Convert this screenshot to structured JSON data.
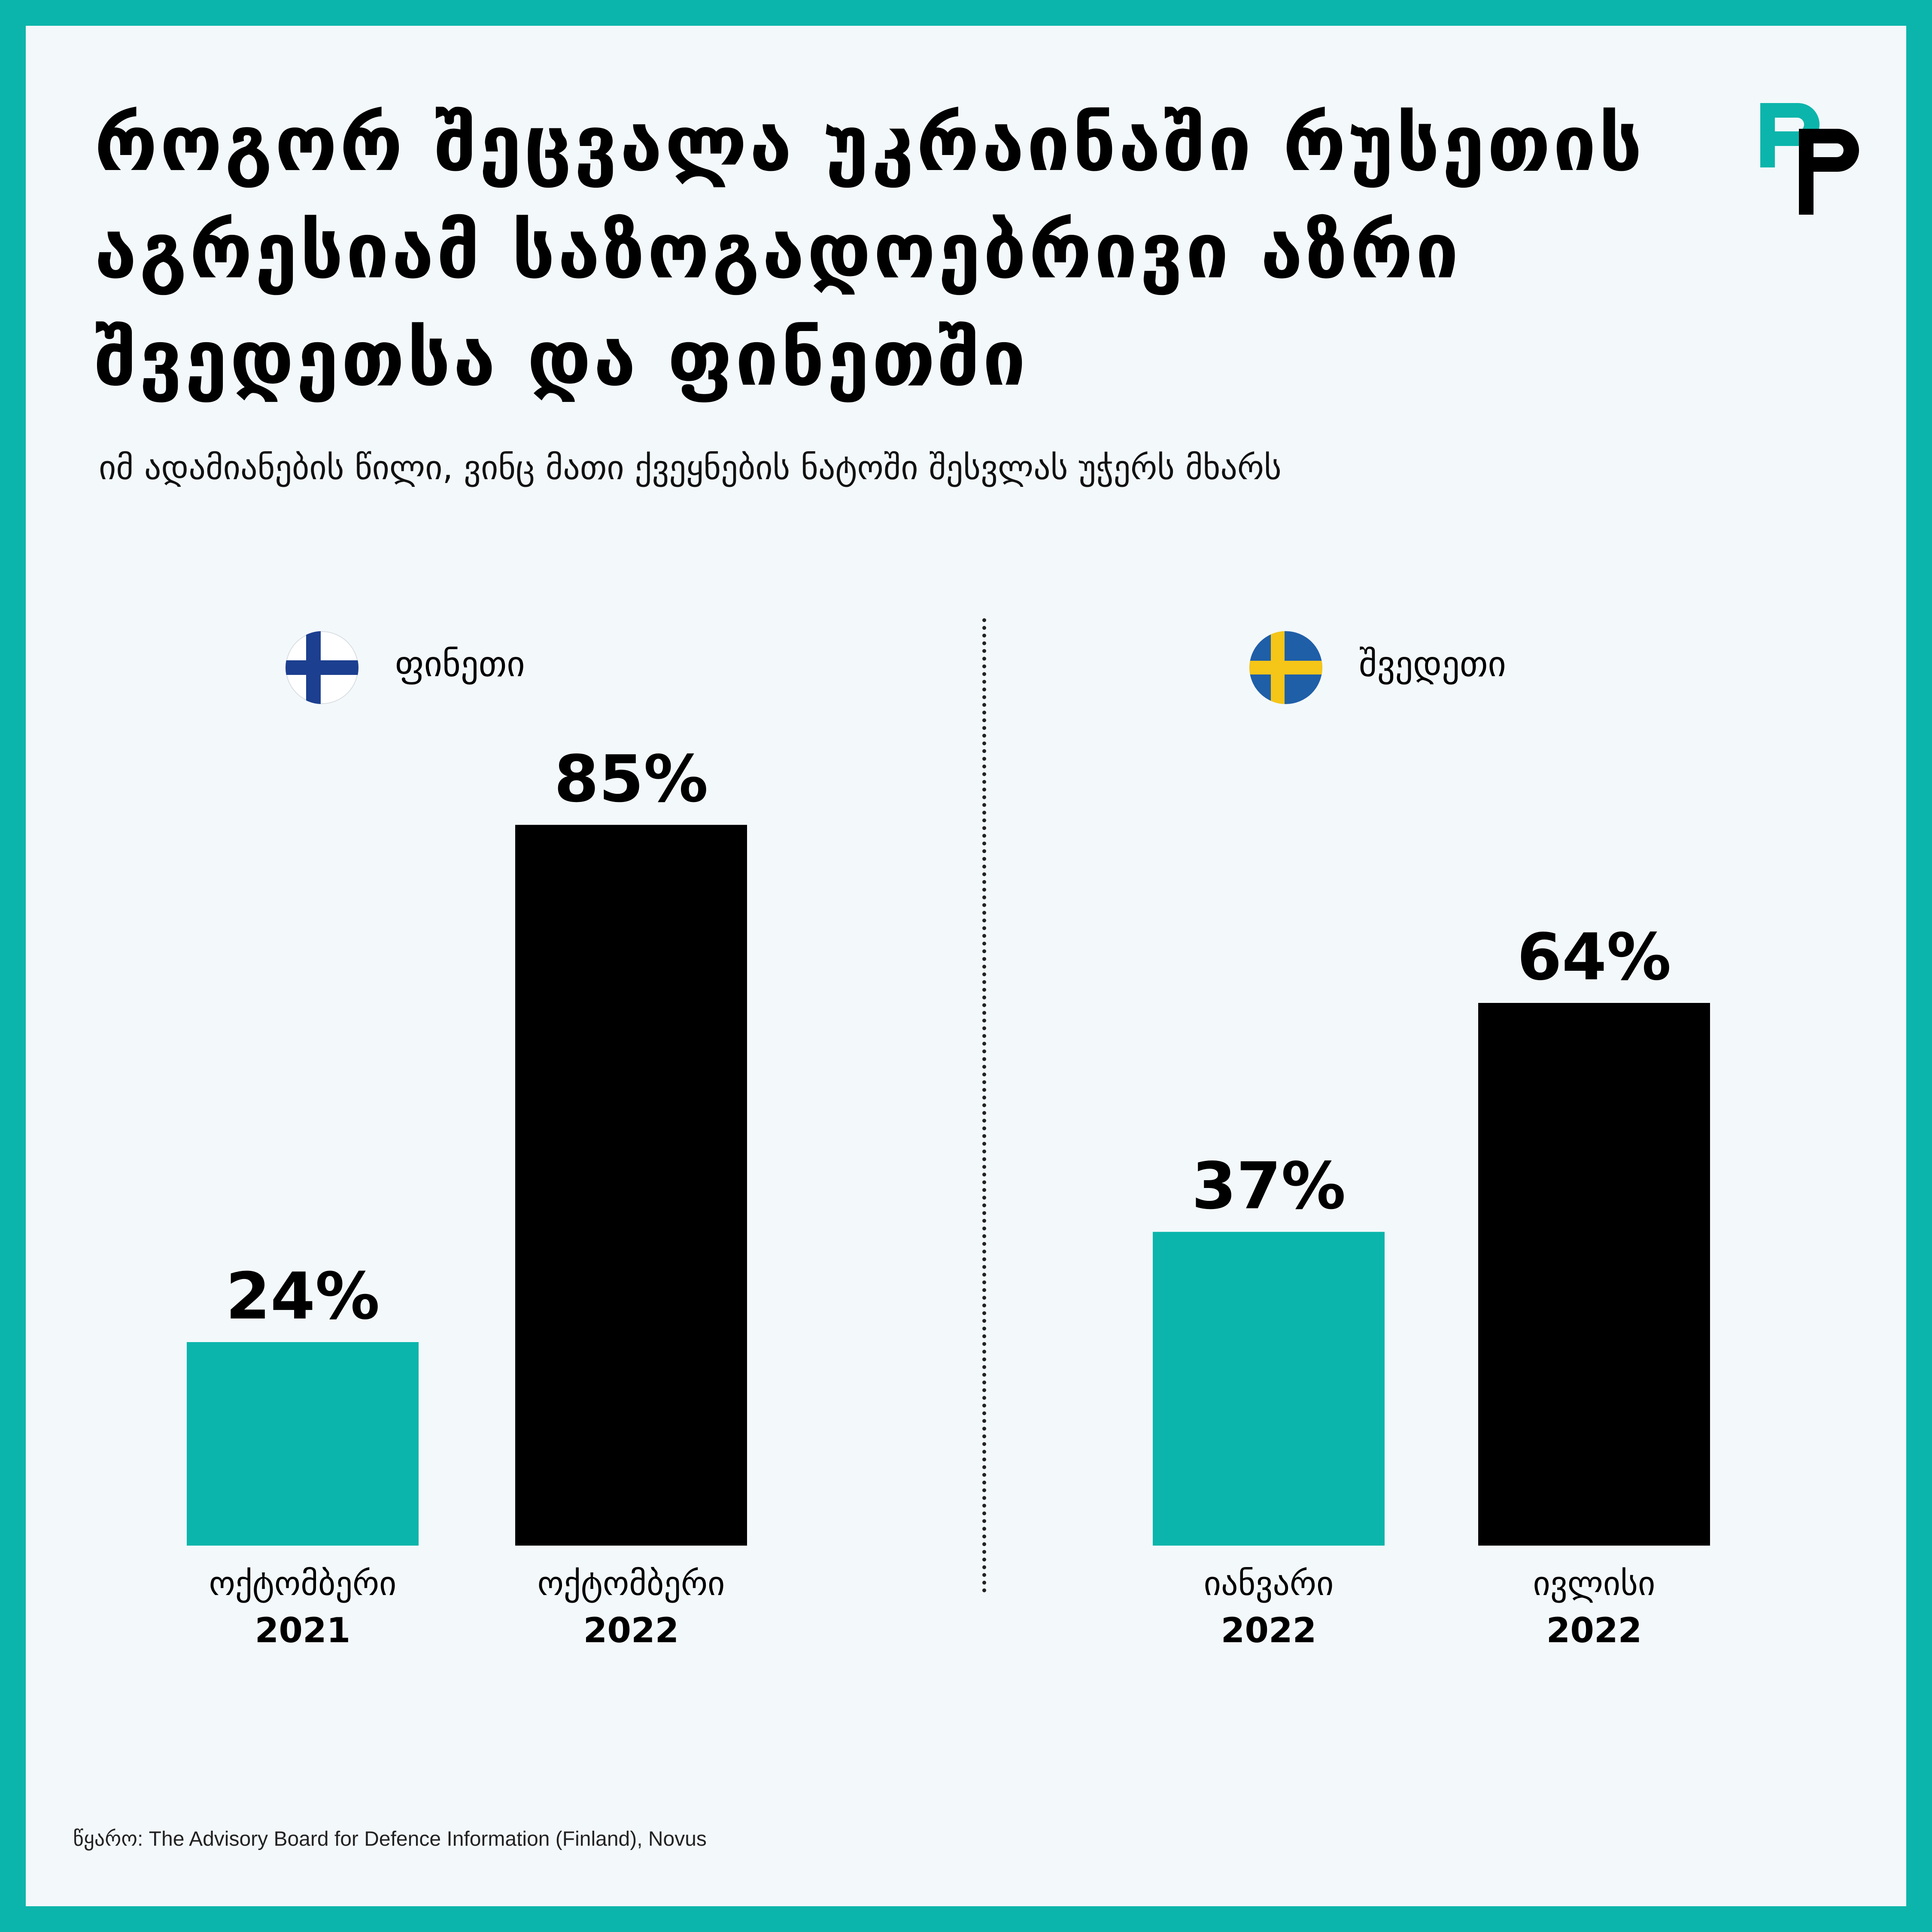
{
  "title_lines": [
    "როგორ შეცვალა უკრაინაში რუსეთის",
    "აგრესიამ საზოგადოებრივი აზრი",
    "შვედეთსა და ფინეთში"
  ],
  "subtitle": "იმ ადამიანების წილი, ვინც მათი ქვეყნების ნატოში შესვლას უჭერს მხარს",
  "source": "წყარო: The Advisory Board for Defence Information (Finland), Novus",
  "colors": {
    "teal": "#0bb5ab",
    "black": "#000000",
    "background": "#f3f8fb"
  },
  "chart_data": [
    {
      "type": "bar",
      "country": "ფინეთი",
      "categories": [
        [
          "ოქტომბერი",
          "2021"
        ],
        [
          "ოქტომბერი",
          "2022"
        ]
      ],
      "values": [
        24,
        85
      ],
      "value_labels": [
        "24%",
        "85%"
      ],
      "bar_colors": [
        "#0bb5ab",
        "#000000"
      ],
      "ylim": [
        0,
        100
      ]
    },
    {
      "type": "bar",
      "country": "შვედეთი",
      "categories": [
        [
          "იანვარი",
          "2022"
        ],
        [
          "ივლისი",
          "2022"
        ]
      ],
      "values": [
        37,
        64
      ],
      "value_labels": [
        "37%",
        "64%"
      ],
      "bar_colors": [
        "#0bb5ab",
        "#000000"
      ],
      "ylim": [
        0,
        100
      ]
    }
  ]
}
